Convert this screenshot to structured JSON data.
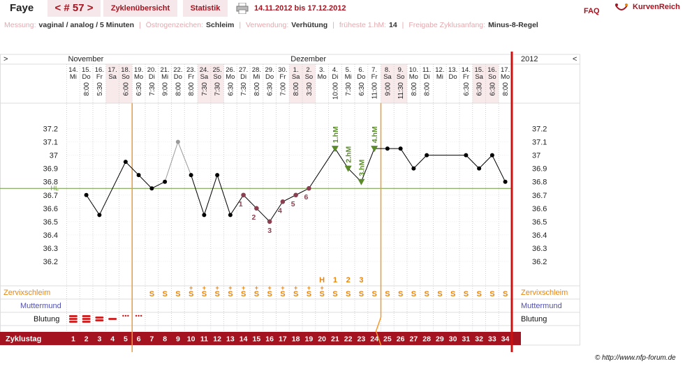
{
  "header": {
    "name": "Faye",
    "cycle_number": "< # 57 >",
    "tab_overview": "Zyklenübersicht",
    "tab_stats": "Statistik",
    "date_range": "14.11.2012 bis 17.12.2012",
    "faq": "FAQ",
    "logo": "KurvenReich",
    "print_icon": "printer-icon"
  },
  "info": [
    {
      "key": "Messung:",
      "value": "vaginal / analog / 5 Minuten"
    },
    {
      "key": "Östrogenzeichen:",
      "value": "Schleim"
    },
    {
      "key": "Verwendung:",
      "value": "Verhütung"
    },
    {
      "key": "früheste 1.hM:",
      "value": "14"
    },
    {
      "key": "Freigabe Zyklusanfang:",
      "value": "Minus-8-Regel"
    }
  ],
  "nav": {
    "left_arrow": ">",
    "right_arrow": "<",
    "year": "2012"
  },
  "colors": {
    "accent": "#a31420",
    "line_orange": "#f39a2e",
    "cover_line": "#6a9a3a",
    "hm_green": "#5a8a2a",
    "low_marker": "#8a4050",
    "weekend_bg": "#f8e9eb",
    "mucus": "#e8850f",
    "cervix": "#5050b0"
  },
  "chart_data": {
    "type": "line",
    "months": [
      {
        "label": "November",
        "day_index": 1
      },
      {
        "label": "Dezember",
        "day_index": 18
      }
    ],
    "dates": [
      "14.",
      "15.",
      "16.",
      "17.",
      "18.",
      "19.",
      "20.",
      "21.",
      "22.",
      "23.",
      "24.",
      "25.",
      "26.",
      "27.",
      "28.",
      "29.",
      "30.",
      "1.",
      "2.",
      "3.",
      "4.",
      "5.",
      "6.",
      "7.",
      "8.",
      "9.",
      "10.",
      "11.",
      "12.",
      "13.",
      "14.",
      "15.",
      "16.",
      "17."
    ],
    "weekdays": [
      "Mi",
      "Do",
      "Fr",
      "Sa",
      "So",
      "Mo",
      "Di",
      "Mi",
      "Do",
      "Fr",
      "Sa",
      "So",
      "Mo",
      "Di",
      "Mi",
      "Do",
      "Fr",
      "Sa",
      "So",
      "Mo",
      "Di",
      "Mi",
      "Do",
      "Fr",
      "Sa",
      "So",
      "Mo",
      "Di",
      "Mi",
      "Do",
      "Fr",
      "Sa",
      "So",
      "Mo"
    ],
    "times": [
      "",
      "8:00",
      "5:30",
      "",
      "6:00",
      "6:30",
      "7:30",
      "9:00",
      "8:00",
      "8:00",
      "7:30",
      "7:30",
      "6:30",
      "7:30",
      "8:00",
      "6:30",
      "7:00",
      "8:00",
      "3:30",
      "",
      "10:00",
      "7:30",
      "6:30",
      "11:00",
      "9:00",
      "11:30",
      "8:00",
      "8:00",
      "",
      "",
      "6:30",
      "6:30",
      "6:30",
      "8:00"
    ],
    "weekend": [
      false,
      false,
      false,
      true,
      true,
      false,
      false,
      false,
      false,
      false,
      true,
      true,
      false,
      false,
      false,
      false,
      false,
      true,
      true,
      false,
      false,
      false,
      false,
      false,
      true,
      true,
      false,
      false,
      false,
      false,
      false,
      true,
      true,
      false
    ],
    "temperatures": [
      null,
      36.7,
      36.55,
      null,
      36.95,
      36.85,
      36.75,
      36.8,
      37.1,
      36.85,
      36.55,
      36.85,
      36.55,
      36.7,
      36.6,
      36.5,
      36.65,
      36.7,
      36.75,
      null,
      37.05,
      36.9,
      36.8,
      37.05,
      37.05,
      37.05,
      36.9,
      37.0,
      null,
      null,
      37.0,
      36.9,
      37.0,
      36.8
    ],
    "excluded_days": [
      9
    ],
    "low_labels": [
      {
        "day": 14,
        "label": "1"
      },
      {
        "day": 15,
        "label": "2"
      },
      {
        "day": 16,
        "label": "3"
      },
      {
        "day": 17,
        "label": "4"
      },
      {
        "day": 18,
        "label": "5"
      },
      {
        "day": 19,
        "label": "6"
      }
    ],
    "high_labels": [
      {
        "day": 21,
        "label": "1.hM"
      },
      {
        "day": 22,
        "label": "2.hM"
      },
      {
        "day": 23,
        "label": "3.hM"
      },
      {
        "day": 24,
        "label": "4.hM"
      }
    ],
    "cover_line": {
      "value": 36.75,
      "label": "HL"
    },
    "ylim": [
      36.2,
      37.2
    ],
    "yticks": [
      "37.2",
      "37.1",
      "37",
      "36.9",
      "36.8",
      "36.7",
      "36.6",
      "36.5",
      "36.4",
      "36.3",
      "36.2"
    ],
    "vertical_markers": [
      {
        "after_day": 5,
        "color": "#f39a2e"
      },
      {
        "after_day": 24,
        "color": "#f39a2e"
      },
      {
        "after_day": 34,
        "color": "#cc1111"
      }
    ],
    "peak_marks": [
      {
        "day": 20,
        "label": "H"
      },
      {
        "day": 21,
        "label": "1"
      },
      {
        "day": 22,
        "label": "2"
      },
      {
        "day": 23,
        "label": "3"
      }
    ],
    "mucus_row": {
      "label": "Zervixschleim",
      "values": [
        "",
        "",
        "",
        "",
        "",
        "",
        "S",
        "S",
        "S",
        "S+",
        "S+",
        "S+",
        "S+",
        "S+",
        "S+",
        "S+",
        "S+",
        "S+",
        "S+",
        "S+",
        "S",
        "S",
        "S",
        "S",
        "S",
        "S",
        "S",
        "S",
        "S",
        "S",
        "S",
        "S",
        "S",
        "S"
      ]
    },
    "cervix_row": {
      "label": "Muttermund"
    },
    "bleeding_row": {
      "label": "Blutung",
      "values": [
        3,
        3,
        2,
        1,
        0.5,
        0.5,
        0,
        0,
        0,
        0,
        0,
        0,
        0,
        0,
        0,
        0,
        0,
        0,
        0,
        0,
        0,
        0,
        0,
        0,
        0,
        0,
        0,
        0,
        0,
        0,
        0,
        0,
        0,
        0
      ]
    },
    "cycle_day_label": "Zyklustag",
    "cycle_days": [
      "1",
      "2",
      "3",
      "4",
      "5",
      "6",
      "7",
      "8",
      "9",
      "10",
      "11",
      "12",
      "13",
      "14",
      "15",
      "16",
      "17",
      "18",
      "19",
      "20",
      "21",
      "22",
      "23",
      "24",
      "25",
      "26",
      "27",
      "28",
      "29",
      "30",
      "31",
      "32",
      "33",
      "34"
    ]
  },
  "copyright": "© http://www.nfp-forum.de"
}
